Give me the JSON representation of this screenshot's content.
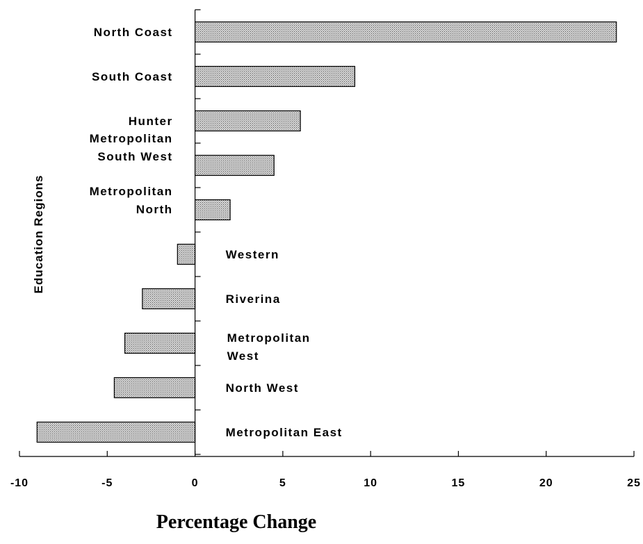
{
  "chart_data": {
    "type": "bar",
    "orientation": "horizontal",
    "categories": [
      [
        "North Coast"
      ],
      [
        "South Coast"
      ],
      [
        "Hunter"
      ],
      [
        "Metropolitan",
        "South West"
      ],
      [
        "Metropolitan",
        "North"
      ],
      [
        "Western"
      ],
      [
        "Riverina"
      ],
      [
        "Metropolitan",
        "West"
      ],
      [
        "North West"
      ],
      [
        "Metropolitan East"
      ]
    ],
    "values": [
      24,
      9.1,
      6,
      4.5,
      2,
      -1,
      -3,
      -4,
      -4.6,
      -9
    ],
    "xlim": [
      -10,
      25
    ],
    "xticks": [
      -10,
      -5,
      0,
      5,
      10,
      15,
      20,
      25
    ],
    "xtick_labels": [
      "-10",
      "-5",
      "0",
      "5",
      "10",
      "15",
      "20",
      "25"
    ],
    "xlabel": "Percentage Change",
    "ylabel": "Education Regions",
    "title": "",
    "grid": false,
    "bar_fill": "dotted grey",
    "colors": {
      "bar": "#bdbdbd",
      "axis": "#000000",
      "background": "#ffffff"
    }
  }
}
